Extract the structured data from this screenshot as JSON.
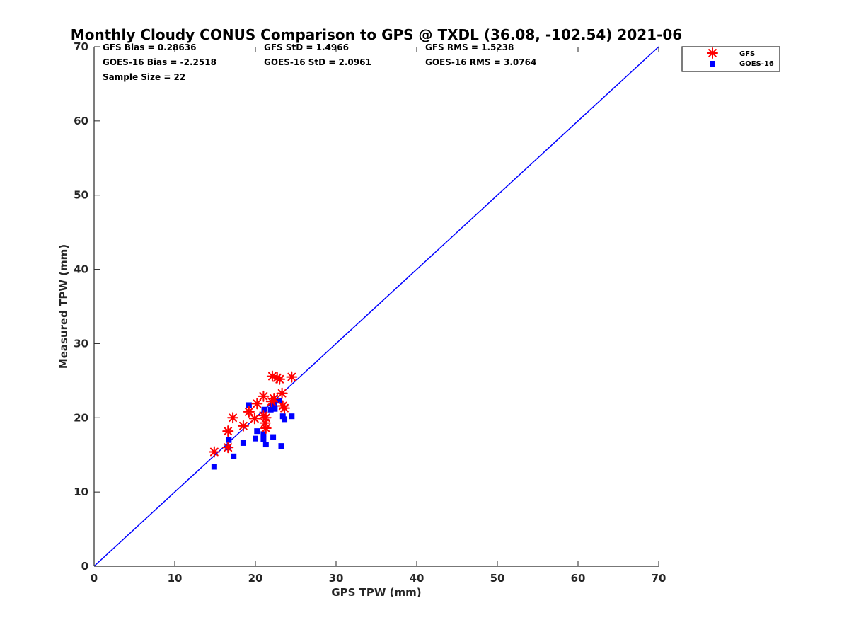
{
  "chart_data": {
    "type": "scatter",
    "title": "Monthly Cloudy CONUS Comparison to GPS @ TXDL (36.08, -102.54) 2021-06",
    "xlabel": "GPS TPW (mm)",
    "ylabel": "Measured TPW (mm)",
    "xlim": [
      0,
      70
    ],
    "ylim": [
      0,
      70
    ],
    "xticks": [
      "0",
      "10",
      "20",
      "30",
      "40",
      "50",
      "60",
      "70"
    ],
    "yticks": [
      "0",
      "10",
      "20",
      "30",
      "40",
      "50",
      "60",
      "70"
    ],
    "stats": {
      "gfs_bias": "GFS Bias = 0.28636",
      "goes_bias": "GOES-16 Bias = -2.2518",
      "sample_size": "Sample Size = 22",
      "gfs_std": "GFS StD = 1.4966",
      "goes_std": "GOES-16 StD = 2.0961",
      "gfs_rms": "GFS RMS = 1.5238",
      "goes_rms": "GOES-16 RMS = 3.0764"
    },
    "legend": {
      "placement": "outside-top-right",
      "entries": [
        "GFS",
        "GOES-16"
      ]
    },
    "colors": {
      "gfs": "#ff0000",
      "goes": "#0000ff",
      "line": "#0000ff"
    },
    "reference_line": {
      "from": [
        0,
        0
      ],
      "to": [
        70,
        70
      ]
    },
    "series": [
      {
        "name": "GFS",
        "marker": "asterisk",
        "points": [
          [
            14.9,
            15.4
          ],
          [
            16.6,
            16.0
          ],
          [
            16.6,
            18.2
          ],
          [
            17.2,
            20.0
          ],
          [
            18.5,
            18.9
          ],
          [
            19.2,
            20.8
          ],
          [
            19.9,
            19.9
          ],
          [
            20.2,
            21.9
          ],
          [
            21.0,
            22.9
          ],
          [
            21.0,
            20.3
          ],
          [
            21.2,
            19.3
          ],
          [
            21.3,
            18.6
          ],
          [
            21.3,
            20.0
          ],
          [
            22.0,
            22.2
          ],
          [
            22.1,
            25.6
          ],
          [
            22.3,
            22.6
          ],
          [
            22.7,
            25.4
          ],
          [
            23.0,
            25.2
          ],
          [
            23.3,
            23.3
          ],
          [
            23.4,
            21.6
          ],
          [
            23.6,
            21.3
          ],
          [
            24.5,
            25.5
          ]
        ]
      },
      {
        "name": "GOES-16",
        "marker": "square",
        "points": [
          [
            14.9,
            13.4
          ],
          [
            16.6,
            16.0
          ],
          [
            16.7,
            17.0
          ],
          [
            17.3,
            14.8
          ],
          [
            18.5,
            16.6
          ],
          [
            19.2,
            21.7
          ],
          [
            20.0,
            17.2
          ],
          [
            20.2,
            18.2
          ],
          [
            21.0,
            17.8
          ],
          [
            21.0,
            17.1
          ],
          [
            21.1,
            21.1
          ],
          [
            21.3,
            16.4
          ],
          [
            21.9,
            21.1
          ],
          [
            22.1,
            21.6
          ],
          [
            22.2,
            17.4
          ],
          [
            22.4,
            21.2
          ],
          [
            22.9,
            22.3
          ],
          [
            23.2,
            16.2
          ],
          [
            23.4,
            20.2
          ],
          [
            23.6,
            19.8
          ],
          [
            24.5,
            20.2
          ],
          [
            22.3,
            22.0
          ]
        ]
      }
    ]
  }
}
